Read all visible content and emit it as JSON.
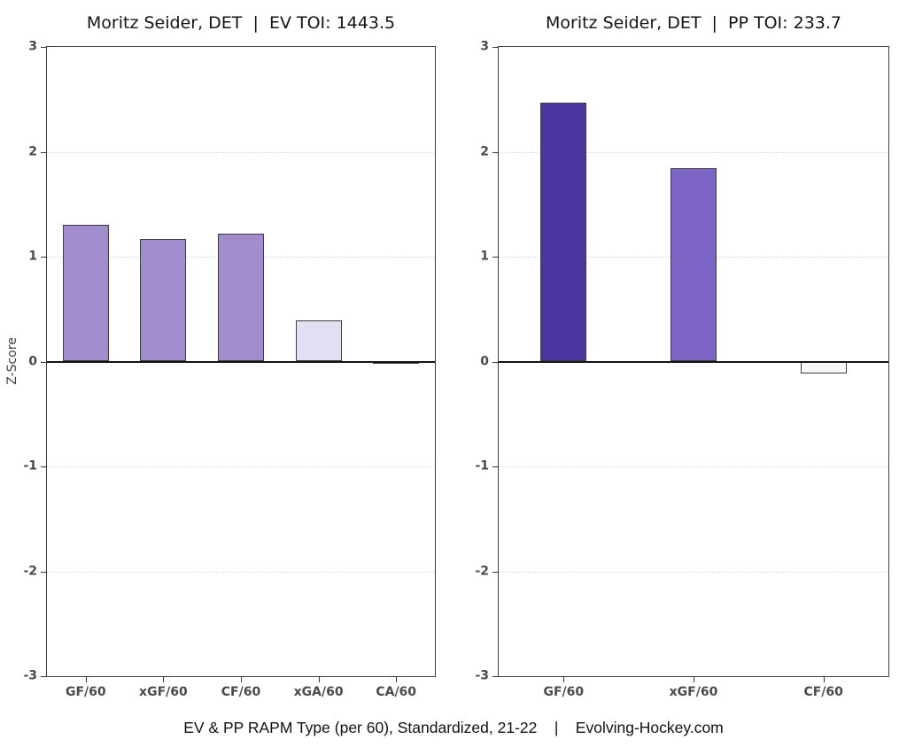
{
  "caption": "EV & PP RAPM Type (per 60), Standardized, 21-22    |    Evolving-Hockey.com",
  "axis": {
    "ylabel": "Z-Score",
    "yticks": [
      3,
      2,
      1,
      0,
      -1,
      -2,
      -3
    ]
  },
  "colors": {
    "bar_border": "#3e3e3e",
    "zero_line": "#141414",
    "gridline": "#dddbe2",
    "tick_label": "#4a4a4a",
    "title_text": "#141414"
  },
  "chart_data": [
    {
      "type": "bar",
      "title": "Moritz Seider, DET  |  EV TOI: 1443.5",
      "categories": [
        "GF/60",
        "xGF/60",
        "CF/60",
        "xGA/60",
        "CA/60"
      ],
      "values": [
        1.3,
        1.17,
        1.22,
        0.39,
        -0.02
      ],
      "bar_colors": [
        "#a18dcd",
        "#a18dcd",
        "#a18dcd",
        "#e4def2",
        "#fbfbfb"
      ],
      "xlabel": "",
      "ylabel": "Z-Score",
      "ylim": [
        -3,
        3
      ],
      "grid": true,
      "legend": "none"
    },
    {
      "type": "bar",
      "title": "Moritz Seider, DET  |  PP TOI: 233.7",
      "categories": [
        "GF/60",
        "xGF/60",
        "CF/60"
      ],
      "values": [
        2.47,
        1.84,
        -0.11
      ],
      "bar_colors": [
        "#4b33a0",
        "#7c65c5",
        "#f8f7fa"
      ],
      "xlabel": "",
      "ylabel": "Z-Score",
      "ylim": [
        -3,
        3
      ],
      "grid": true,
      "legend": "none"
    }
  ]
}
